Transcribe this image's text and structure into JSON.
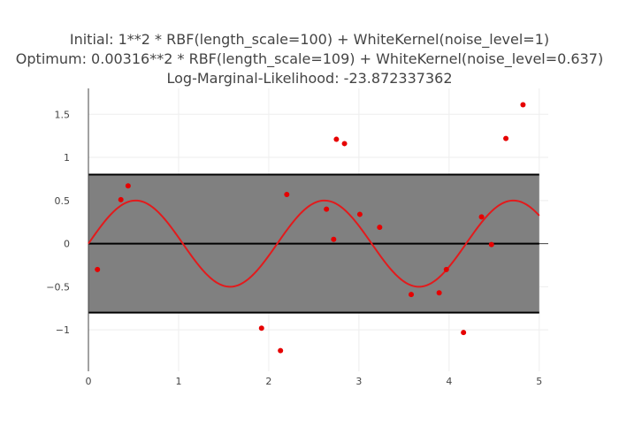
{
  "chart_data": {
    "type": "scatter",
    "title_lines": [
      "Initial: 1**2 * RBF(length_scale=100) + WhiteKernel(noise_level=1)",
      "Optimum: 0.00316**2 * RBF(length_scale=109) + WhiteKernel(noise_level=0.637)",
      "Log-Marginal-Likelihood: -23.872337362"
    ],
    "xlabel": "",
    "ylabel": "",
    "xlim": [
      0,
      5.1
    ],
    "ylim": [
      -1.48,
      1.8
    ],
    "xticks": [
      0,
      1,
      2,
      3,
      4,
      5
    ],
    "yticks": [
      -1,
      -0.5,
      0,
      0.5,
      1,
      1.5
    ],
    "xtick_labels": [
      "0",
      "1",
      "2",
      "3",
      "4",
      "5"
    ],
    "ytick_labels": [
      "−1",
      "−0.5",
      "0",
      "0.5",
      "1",
      "1.5"
    ],
    "grid": true,
    "band": {
      "x": [
        0,
        5
      ],
      "lower": -0.8,
      "upper": 0.8,
      "color": "#808080"
    },
    "mean_line": {
      "x": [
        0,
        5
      ],
      "y": 0,
      "color": "#000000"
    },
    "curve": {
      "function": "0.5*sin(3x)",
      "x_range": [
        0,
        5
      ],
      "color": "#e31a1c"
    },
    "points": {
      "color": "#e60000",
      "x": [
        0.1,
        0.36,
        0.44,
        1.92,
        2.13,
        2.2,
        2.64,
        2.72,
        2.75,
        2.84,
        3.01,
        3.23,
        3.58,
        3.89,
        3.97,
        4.16,
        4.36,
        4.47,
        4.63,
        4.82
      ],
      "y": [
        -0.3,
        0.51,
        0.67,
        -0.98,
        -1.24,
        0.57,
        0.4,
        0.05,
        1.21,
        1.16,
        0.34,
        0.19,
        -0.59,
        -0.57,
        -0.3,
        -1.03,
        0.31,
        -0.01,
        1.22,
        1.61
      ]
    }
  }
}
